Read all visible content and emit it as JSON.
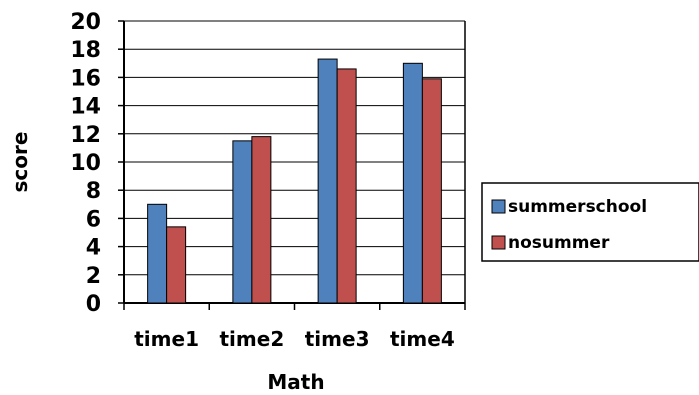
{
  "chart_data": {
    "type": "bar",
    "categories": [
      "time1",
      "time2",
      "time3",
      "time4"
    ],
    "series": [
      {
        "name": "summerschool",
        "values": [
          7.0,
          11.5,
          17.3,
          17.0
        ],
        "color": "#4f81bd"
      },
      {
        "name": "nosummer",
        "values": [
          5.4,
          11.8,
          16.6,
          15.9
        ],
        "color": "#c0504d"
      }
    ],
    "title": "",
    "xlabel": "Math",
    "ylabel": "score",
    "ylim": [
      0,
      20
    ],
    "yticks": [
      0,
      2,
      4,
      6,
      8,
      10,
      12,
      14,
      16,
      18,
      20
    ],
    "grid": true,
    "legend_position": "right"
  }
}
